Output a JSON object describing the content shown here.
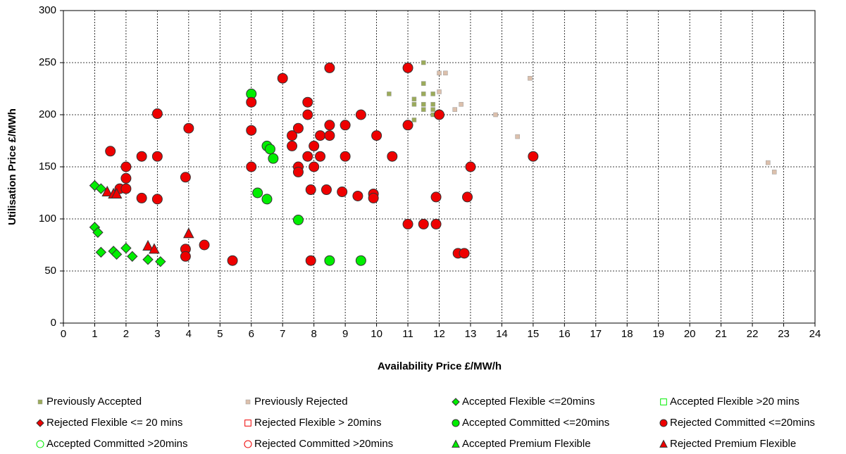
{
  "chart_data": {
    "type": "scatter",
    "x_label": "Availability Price £/MW/h",
    "y_label": "Utilisation Price £/MWh",
    "xlim": [
      0,
      24
    ],
    "xticks": [
      0,
      1,
      2,
      3,
      4,
      5,
      6,
      7,
      8,
      9,
      10,
      11,
      12,
      13,
      14,
      15,
      16,
      17,
      18,
      19,
      20,
      21,
      22,
      23,
      24
    ],
    "ylim": [
      0,
      300
    ],
    "yticks": [
      0,
      50,
      100,
      150,
      200,
      250,
      300
    ],
    "grid": true,
    "series": [
      {
        "name": "Previously Accepted",
        "color": "#9bab5a",
        "marker": "small-square",
        "filled": true,
        "x": [
          10.4,
          11.2,
          11.2,
          11.5,
          11.5,
          11.5,
          11.5,
          11.5,
          11.8,
          11.8,
          11.8,
          11.8,
          11.2
        ],
        "values": [
          220,
          215,
          210,
          250,
          230,
          220,
          210,
          205,
          220,
          210,
          205,
          200,
          195
        ]
      },
      {
        "name": "Previously Rejected",
        "color": "#dcc0ac",
        "marker": "small-square",
        "filled": true,
        "x": [
          12,
          12.2,
          12,
          12.5,
          12.7,
          13.8,
          14.5,
          14.9,
          22.5,
          22.7
        ],
        "values": [
          240,
          240,
          222,
          205,
          210,
          200,
          179,
          235,
          154,
          145
        ]
      },
      {
        "name": "Accepted Flexible <=20mins",
        "color": "#00ee00",
        "marker": "diamond",
        "filled": true,
        "x": [
          1,
          1.2,
          1,
          1.1,
          1.2,
          1.6,
          1.7,
          2,
          2.2,
          2.7,
          3.1
        ],
        "values": [
          132,
          129,
          92,
          87,
          68,
          69,
          66,
          72,
          64,
          61,
          59
        ]
      },
      {
        "name": "Accepted Flexible >20 mins",
        "color": "#00ee00",
        "marker": "square",
        "filled": false,
        "x": [],
        "values": []
      },
      {
        "name": "Rejected Flexible <= 20 mins",
        "color": "#ee0000",
        "marker": "diamond",
        "filled": true,
        "x": [],
        "values": []
      },
      {
        "name": "Rejected Flexible > 20mins",
        "color": "#ee0000",
        "marker": "square",
        "filled": false,
        "x": [],
        "values": []
      },
      {
        "name": "Accepted Committed <=20mins",
        "color": "#00ee00",
        "marker": "circle",
        "filled": true,
        "x": [
          6,
          6.5,
          6.6,
          6.7,
          6.2,
          6.5,
          7.5,
          8.5,
          9.5
        ],
        "values": [
          220,
          170,
          167,
          158,
          125,
          119,
          99,
          60,
          60
        ]
      },
      {
        "name": "Rejected Committed <=20mins",
        "color": "#ee0000",
        "marker": "circle",
        "filled": true,
        "x": [
          1.5,
          2,
          2,
          1.8,
          2,
          2.5,
          2.5,
          3,
          3,
          3,
          3.9,
          4,
          3.9,
          3.9,
          4.5,
          5.4,
          6,
          6,
          6,
          7,
          7.3,
          7.3,
          7.5,
          7.5,
          7.5,
          7.8,
          7.8,
          7.8,
          8,
          8,
          7.9,
          7.9,
          8.2,
          8.2,
          8.5,
          8.5,
          8.5,
          8.4,
          8.9,
          9,
          9,
          9.4,
          9.5,
          9.9,
          9.9,
          10,
          10.5,
          11,
          11,
          11,
          11.5,
          11.9,
          11.9,
          12,
          12.6,
          12.8,
          12.9,
          13,
          15
        ],
        "values": [
          165,
          150,
          139,
          129,
          129,
          160,
          120,
          201,
          160,
          119,
          140,
          187,
          71,
          64,
          75,
          60,
          212,
          185,
          150,
          235,
          180,
          170,
          187,
          150,
          145,
          212,
          200,
          160,
          170,
          150,
          128,
          60,
          180,
          160,
          245,
          190,
          180,
          128,
          126,
          190,
          160,
          122,
          200,
          124,
          120,
          180,
          160,
          245,
          190,
          95,
          95,
          121,
          95,
          200,
          67,
          67,
          121,
          150,
          160
        ]
      },
      {
        "name": "Accepted Committed >20mins",
        "color": "#00ee00",
        "marker": "circle",
        "filled": false,
        "x": [],
        "values": []
      },
      {
        "name": "Rejected Committed >20mins",
        "color": "#ee0000",
        "marker": "circle",
        "filled": false,
        "x": [],
        "values": []
      },
      {
        "name": "Accepted Premium Flexible",
        "color": "#00ee00",
        "marker": "triangle",
        "filled": true,
        "x": [],
        "values": []
      },
      {
        "name": "Rejected Premium Flexible",
        "color": "#ee0000",
        "marker": "triangle",
        "filled": true,
        "x": [
          1.4,
          1.6,
          1.7,
          2.7,
          2.9,
          4
        ],
        "values": [
          126,
          124,
          124,
          74,
          71,
          86
        ]
      }
    ]
  }
}
